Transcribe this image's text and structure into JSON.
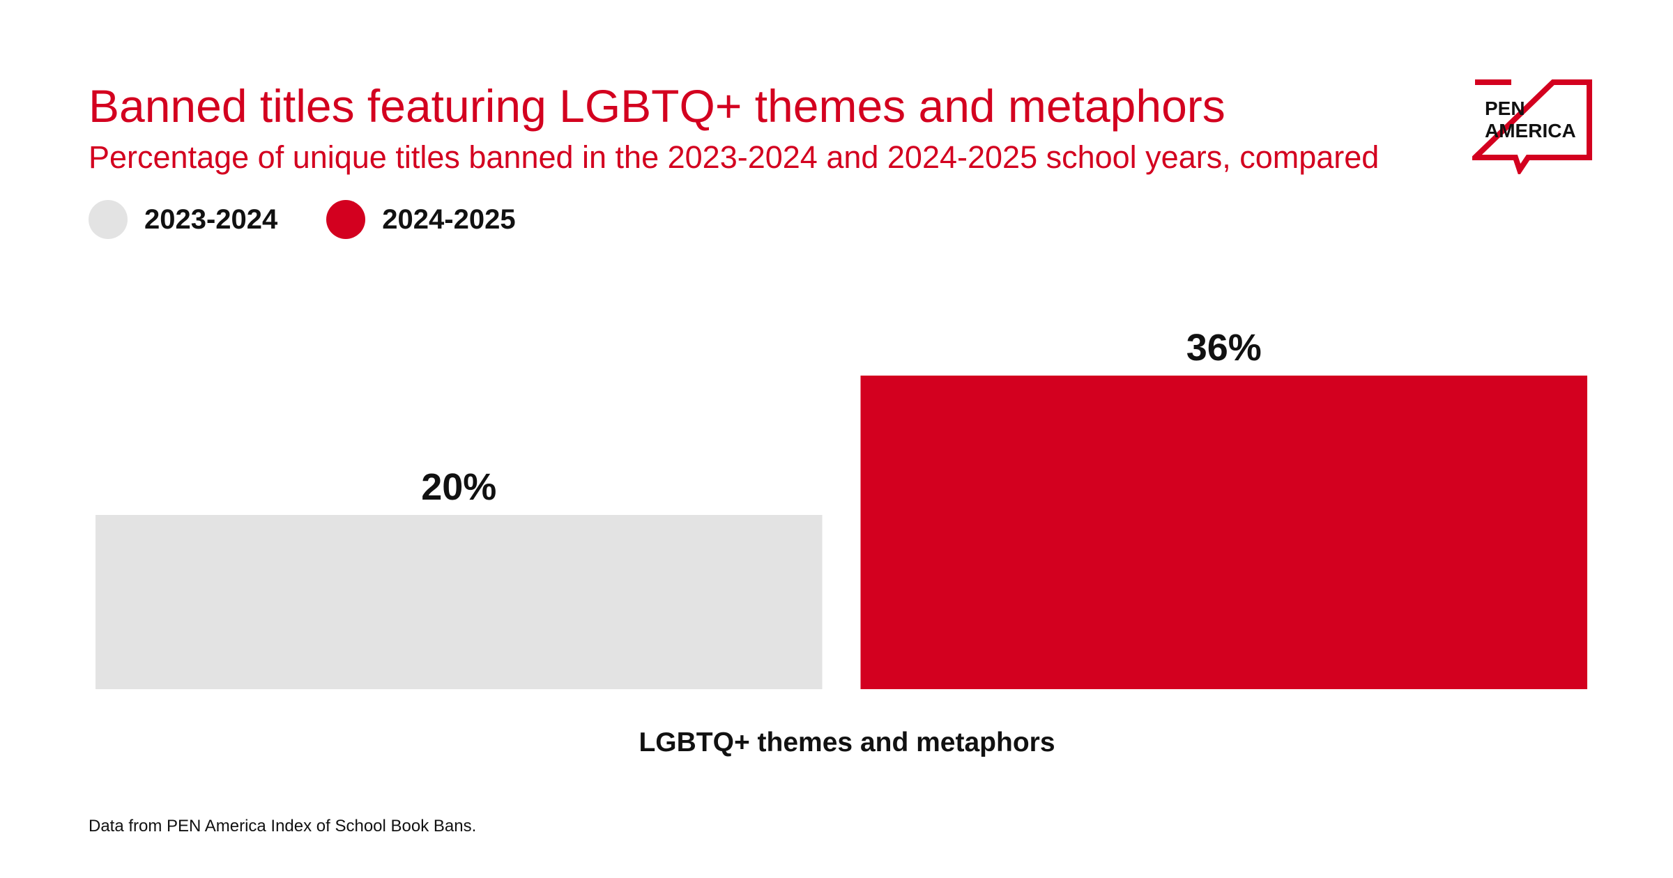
{
  "header": {
    "title": "Banned titles featuring LGBTQ+ themes and metaphors",
    "subtitle": "Percentage of unique titles banned in the 2023-2024 and 2024-2025 school years, compared"
  },
  "logo": {
    "text": "PEN\nAMERICA",
    "color": "#d3001f"
  },
  "colors": {
    "accent": "#d3001f",
    "gray": "#e3e3e3",
    "text": "#111111"
  },
  "chart_data": {
    "type": "bar",
    "categories": [
      "LGBTQ+ themes and metaphors"
    ],
    "series": [
      {
        "name": "2023-2024",
        "values": [
          20
        ],
        "color": "#e3e3e3",
        "value_label": "20%"
      },
      {
        "name": "2024-2025",
        "values": [
          36
        ],
        "color": "#d3001f",
        "value_label": "36%"
      }
    ],
    "ylim": [
      0,
      40
    ],
    "grid": false,
    "legend": "top-left",
    "unit": "%"
  },
  "footer": {
    "source": "Data from PEN America Index of School Book Bans."
  }
}
